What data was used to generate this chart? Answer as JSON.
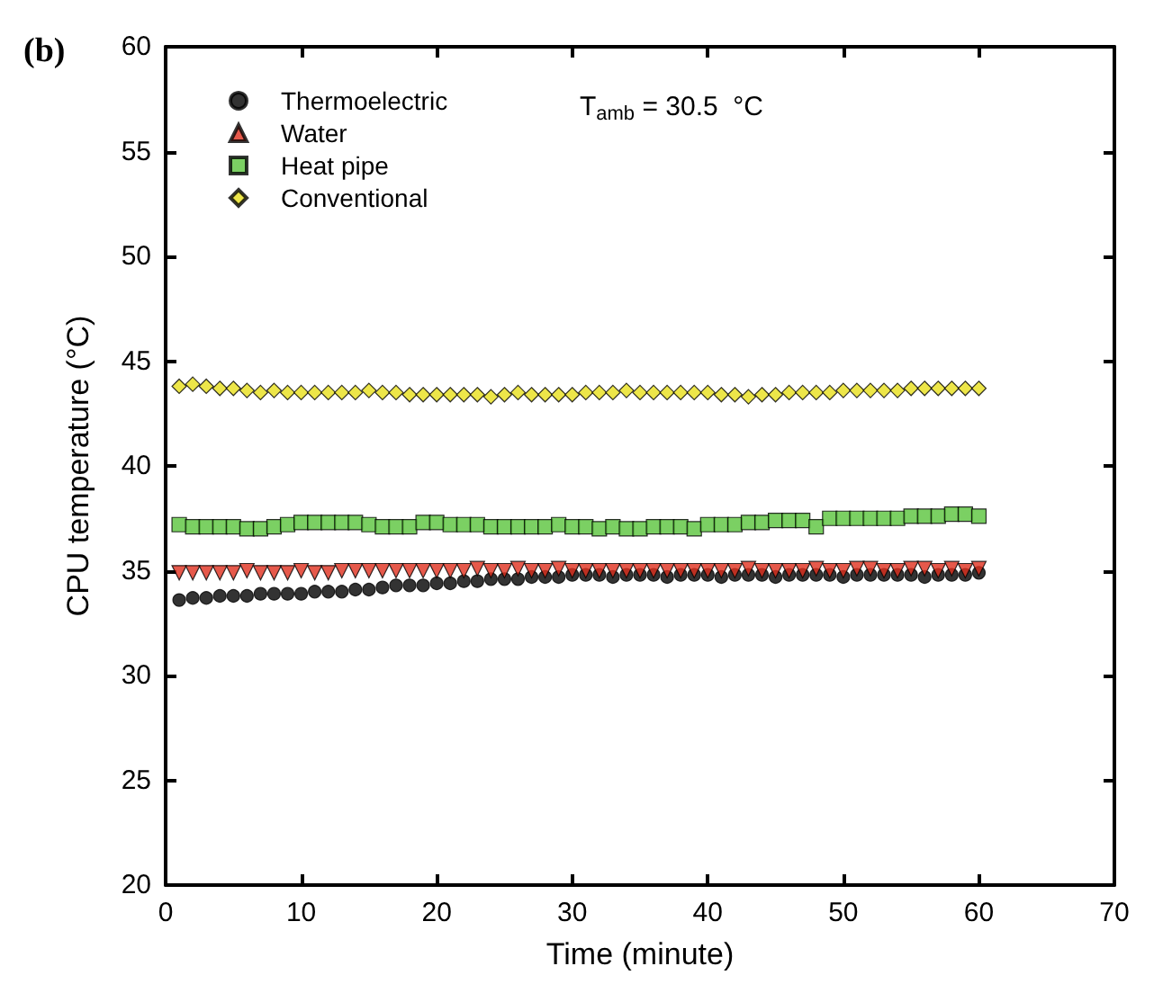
{
  "chart_data": {
    "type": "scatter",
    "title": "(b)",
    "xlabel": "Time (minute)",
    "ylabel": "CPU temperature (°C)",
    "annotations": [
      "T$_{amb}$ = 30.5  °C"
    ],
    "x": [
      1,
      2,
      3,
      4,
      5,
      6,
      7,
      8,
      9,
      10,
      11,
      12,
      13,
      14,
      15,
      16,
      17,
      18,
      19,
      20,
      21,
      22,
      23,
      24,
      25,
      26,
      27,
      28,
      29,
      30,
      31,
      32,
      33,
      34,
      35,
      36,
      37,
      38,
      39,
      40,
      41,
      42,
      43,
      44,
      45,
      46,
      47,
      48,
      49,
      50,
      51,
      52,
      53,
      54,
      55,
      56,
      57,
      58,
      59,
      60
    ],
    "xlim": [
      0,
      70
    ],
    "xticks": [
      0,
      10,
      20,
      30,
      40,
      50,
      60,
      70
    ],
    "ylim": [
      20,
      60
    ],
    "yticks": [
      20,
      25,
      30,
      35,
      40,
      45,
      50,
      55,
      60
    ],
    "grid": false,
    "legend": "top left",
    "series": [
      {
        "name": "Thermoelectric",
        "color": "#000000",
        "marker": "circle",
        "values": [
          33.6,
          33.7,
          33.7,
          33.8,
          33.8,
          33.8,
          33.9,
          33.9,
          33.9,
          33.9,
          34.0,
          34.0,
          34.0,
          34.1,
          34.1,
          34.2,
          34.3,
          34.3,
          34.3,
          34.4,
          34.4,
          34.5,
          34.5,
          34.6,
          34.6,
          34.6,
          34.7,
          34.7,
          34.7,
          34.8,
          34.8,
          34.8,
          34.7,
          34.8,
          34.8,
          34.8,
          34.7,
          34.8,
          34.8,
          34.8,
          34.7,
          34.8,
          34.8,
          34.8,
          34.7,
          34.8,
          34.8,
          34.8,
          34.8,
          34.7,
          34.8,
          34.8,
          34.8,
          34.8,
          34.8,
          34.7,
          34.8,
          34.8,
          34.8,
          34.9
        ]
      },
      {
        "name": "Water",
        "color": "#e0301e",
        "marker": "triangle-down",
        "values": [
          34.9,
          34.9,
          34.9,
          34.9,
          34.9,
          35.0,
          34.9,
          34.9,
          34.9,
          35.0,
          34.9,
          34.9,
          35.0,
          35.0,
          35.0,
          35.0,
          35.0,
          35.0,
          35.0,
          35.0,
          35.0,
          35.0,
          35.1,
          35.0,
          35.0,
          35.1,
          35.0,
          35.0,
          35.1,
          35.0,
          35.0,
          35.0,
          35.0,
          35.0,
          35.0,
          35.0,
          35.0,
          35.0,
          35.0,
          35.0,
          35.0,
          35.0,
          35.1,
          35.0,
          35.0,
          35.0,
          35.0,
          35.1,
          35.0,
          35.0,
          35.1,
          35.1,
          35.0,
          35.0,
          35.1,
          35.1,
          35.0,
          35.1,
          35.0,
          35.1
        ]
      },
      {
        "name": "Heat pipe",
        "color": "#5ac43c",
        "marker": "square",
        "values": [
          37.2,
          37.1,
          37.1,
          37.1,
          37.1,
          37.0,
          37.0,
          37.1,
          37.2,
          37.3,
          37.3,
          37.3,
          37.3,
          37.3,
          37.2,
          37.1,
          37.1,
          37.1,
          37.3,
          37.3,
          37.2,
          37.2,
          37.2,
          37.1,
          37.1,
          37.1,
          37.1,
          37.1,
          37.2,
          37.1,
          37.1,
          37.0,
          37.1,
          37.0,
          37.0,
          37.1,
          37.1,
          37.1,
          37.0,
          37.2,
          37.2,
          37.2,
          37.3,
          37.3,
          37.4,
          37.4,
          37.4,
          37.1,
          37.5,
          37.5,
          37.5,
          37.5,
          37.5,
          37.5,
          37.6,
          37.6,
          37.6,
          37.7,
          37.7,
          37.6
        ]
      },
      {
        "name": "Conventional",
        "color": "#e8e01c",
        "marker": "diamond",
        "values": [
          43.8,
          43.9,
          43.8,
          43.7,
          43.7,
          43.6,
          43.5,
          43.6,
          43.5,
          43.5,
          43.5,
          43.5,
          43.5,
          43.5,
          43.6,
          43.5,
          43.5,
          43.4,
          43.4,
          43.4,
          43.4,
          43.4,
          43.4,
          43.3,
          43.4,
          43.5,
          43.4,
          43.4,
          43.4,
          43.4,
          43.5,
          43.5,
          43.5,
          43.6,
          43.5,
          43.5,
          43.5,
          43.5,
          43.5,
          43.5,
          43.4,
          43.4,
          43.3,
          43.4,
          43.4,
          43.5,
          43.5,
          43.5,
          43.5,
          43.6,
          43.6,
          43.6,
          43.6,
          43.6,
          43.7,
          43.7,
          43.7,
          43.7,
          43.7,
          43.7
        ]
      }
    ]
  }
}
